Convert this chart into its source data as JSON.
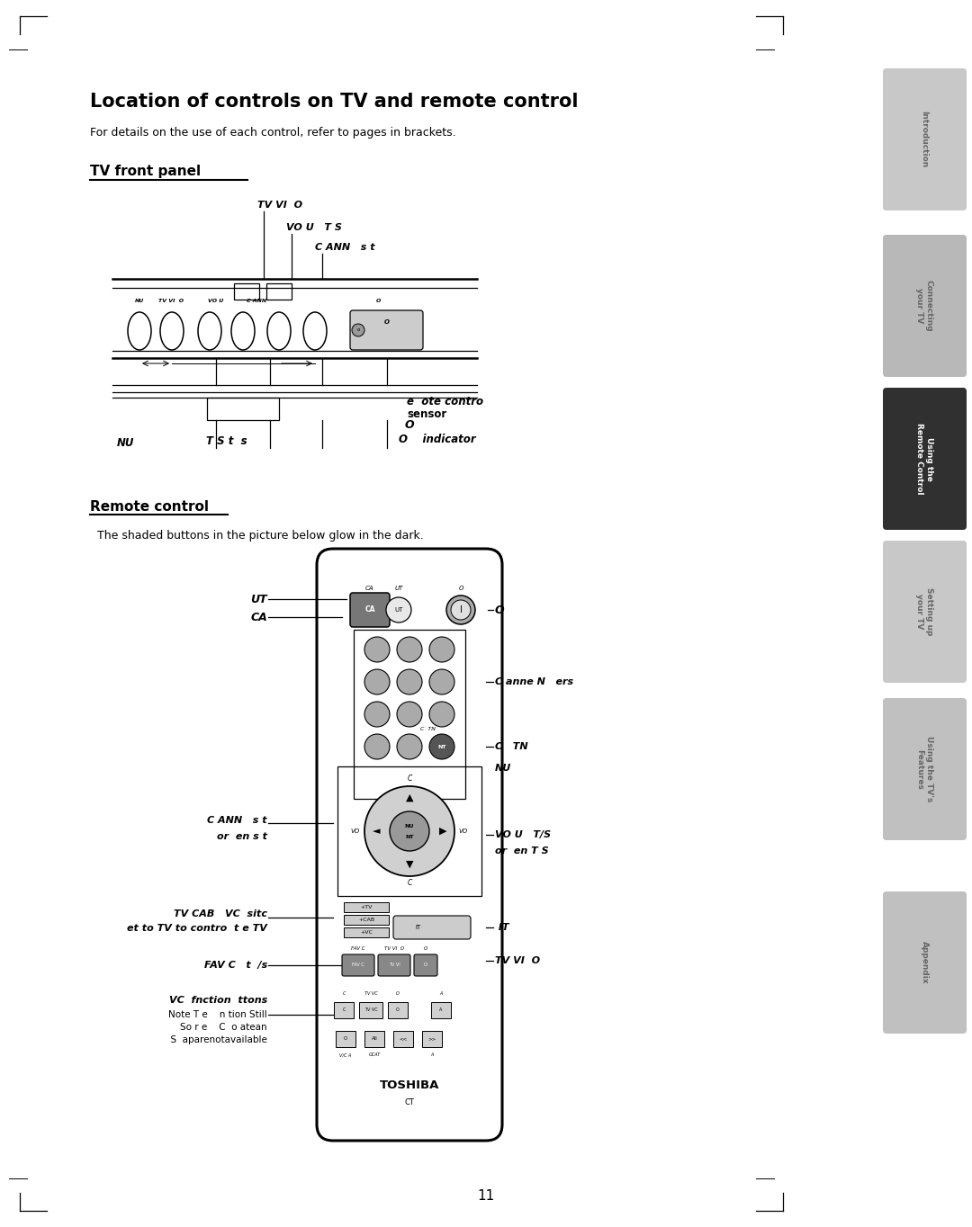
{
  "title": "Location of controls on TV and remote control",
  "subtitle": "For details on the use of each control, refer to pages in brackets.",
  "section1": "TV front panel",
  "section2": "Remote control",
  "remote_subtitle": "  The shaded buttons in the picture below glow in the dark.",
  "page_number": "11",
  "bg_color": "#ffffff",
  "tab_labels": [
    "Introduction",
    "Connecting\nyour TV",
    "Using the\nRemote Control",
    "Setting up\nyour TV",
    "Using the TV's\nFeatures",
    "Appendix"
  ],
  "tab_active": 2,
  "tab_colors": [
    "#c8c8c8",
    "#b8b8b8",
    "#303030",
    "#c8c8c8",
    "#c0c0c0",
    "#c0c0c0"
  ],
  "tab_text_colors": [
    "#666666",
    "#666666",
    "#ffffff",
    "#666666",
    "#666666",
    "#666666"
  ]
}
